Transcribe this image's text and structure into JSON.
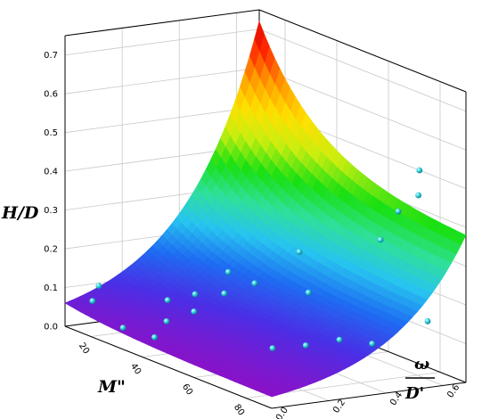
{
  "chart_data": {
    "type": "surface3d",
    "title": "",
    "axes": {
      "z": {
        "label": "H/D",
        "ticks": [
          "0.0",
          "0.1",
          "0.2",
          "0.3",
          "0.4",
          "0.5",
          "0.6",
          "0.7"
        ],
        "range": [
          0,
          0.75
        ]
      },
      "x": {
        "label": "M\"",
        "ticks": [
          "20",
          "40",
          "60",
          "80"
        ],
        "range": [
          10,
          90
        ]
      },
      "y": {
        "label_num": "ω",
        "label_den": "D'",
        "ticks": [
          "0.0",
          "0.2",
          "0.4",
          "0.6"
        ],
        "range": [
          0,
          0.68
        ]
      }
    },
    "grid": true,
    "colormap": [
      "#8a12c8",
      "#4a2fe6",
      "#1e6cf2",
      "#27c4f0",
      "#2fe09a",
      "#19e012",
      "#c8ee10",
      "#ffe000",
      "#ff9a00",
      "#ff2a00",
      "#d80000"
    ],
    "surface_corners": [
      {
        "M": 10,
        "w": 0.0,
        "H": 0.06
      },
      {
        "M": 10,
        "w": 0.68,
        "H": 0.72
      },
      {
        "M": 90,
        "w": 0.0,
        "H": 0.03
      },
      {
        "M": 90,
        "w": 0.68,
        "H": 0.38
      }
    ],
    "points": [
      {
        "M": 12,
        "w": 0.1,
        "H": 0.1
      },
      {
        "M": 14,
        "w": 0.06,
        "H": 0.07
      },
      {
        "M": 28,
        "w": 0.04,
        "H": 0.04
      },
      {
        "M": 38,
        "w": 0.06,
        "H": 0.04
      },
      {
        "M": 36,
        "w": 0.12,
        "H": 0.07
      },
      {
        "M": 32,
        "w": 0.16,
        "H": 0.11
      },
      {
        "M": 40,
        "w": 0.18,
        "H": 0.1
      },
      {
        "M": 36,
        "w": 0.22,
        "H": 0.13
      },
      {
        "M": 44,
        "w": 0.25,
        "H": 0.15
      },
      {
        "M": 40,
        "w": 0.3,
        "H": 0.19
      },
      {
        "M": 48,
        "w": 0.32,
        "H": 0.18
      },
      {
        "M": 52,
        "w": 0.44,
        "H": 0.26
      },
      {
        "M": 60,
        "w": 0.4,
        "H": 0.18
      },
      {
        "M": 66,
        "w": 0.22,
        "H": 0.07
      },
      {
        "M": 70,
        "w": 0.3,
        "H": 0.08
      },
      {
        "M": 72,
        "w": 0.4,
        "H": 0.09
      },
      {
        "M": 78,
        "w": 0.46,
        "H": 0.09
      },
      {
        "M": 84,
        "w": 0.6,
        "H": 0.15
      },
      {
        "M": 68,
        "w": 0.58,
        "H": 0.32
      },
      {
        "M": 66,
        "w": 0.66,
        "H": 0.38
      },
      {
        "M": 76,
        "w": 0.64,
        "H": 0.45
      },
      {
        "M": 72,
        "w": 0.68,
        "H": 0.5
      }
    ]
  }
}
